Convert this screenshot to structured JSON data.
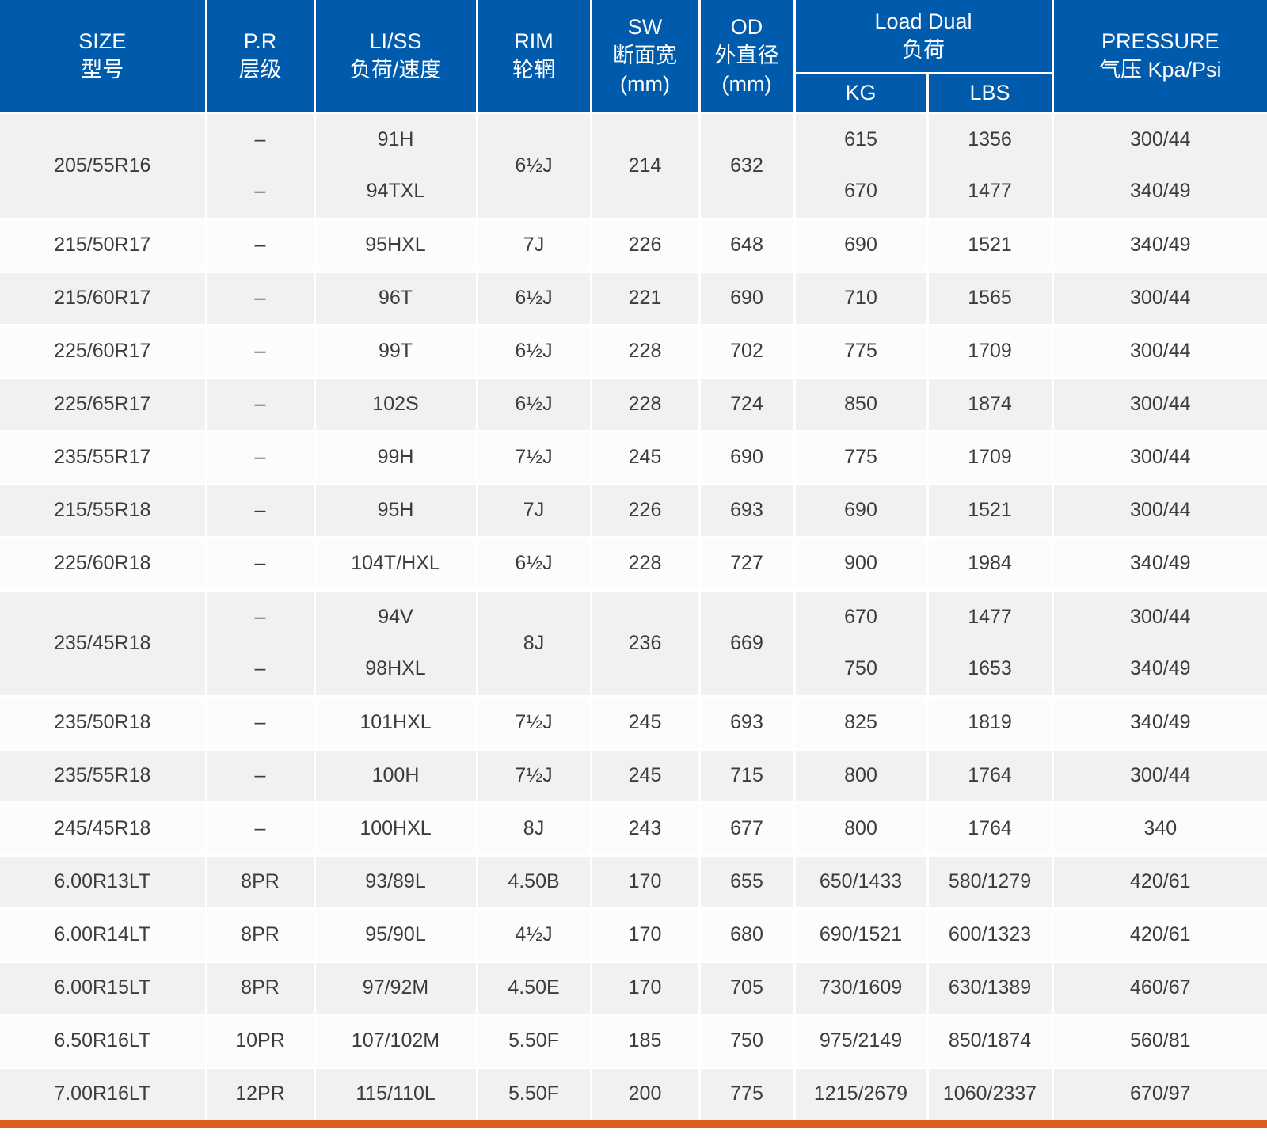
{
  "colors": {
    "header_blue": "#005BAC",
    "accent_orange": "#DD5E1E",
    "row_gray": "#F1F1F0",
    "row_white": "#FCFCFB",
    "body_text": "#3C3C3C",
    "header_text": "#FFFFFF"
  },
  "table": {
    "header": {
      "size": {
        "en": "SIZE",
        "zh": "型号"
      },
      "pr": {
        "en": "P.R",
        "zh": "层级"
      },
      "liss": {
        "en": "LI/SS",
        "zh": "负荷/速度"
      },
      "rim": {
        "en": "RIM",
        "zh": "轮辋"
      },
      "sw": {
        "en": "SW",
        "zh": "断面宽",
        "unit": "(mm)"
      },
      "od": {
        "en": "OD",
        "zh": "外直径",
        "unit": "(mm)"
      },
      "load_dual": {
        "en": "Load Dual",
        "zh": "负荷"
      },
      "kg": "KG",
      "lbs": "LBS",
      "pressure": {
        "en": "PRESSURE",
        "zh": "气压 Kpa/Psi"
      }
    },
    "rows": [
      {
        "double": true,
        "size": "205/55R16",
        "pr": [
          "–",
          "–"
        ],
        "liss": [
          "91H",
          "94TXL"
        ],
        "rim": "6½J",
        "sw": "214",
        "od": "632",
        "kg": [
          "615",
          "670"
        ],
        "lbs": [
          "1356",
          "1477"
        ],
        "pressure": [
          "300/44",
          "340/49"
        ]
      },
      {
        "double": false,
        "size": "215/50R17",
        "pr": "–",
        "liss": "95HXL",
        "rim": "7J",
        "sw": "226",
        "od": "648",
        "kg": "690",
        "lbs": "1521",
        "pressure": "340/49"
      },
      {
        "double": false,
        "size": "215/60R17",
        "pr": "–",
        "liss": "96T",
        "rim": "6½J",
        "sw": "221",
        "od": "690",
        "kg": "710",
        "lbs": "1565",
        "pressure": "300/44"
      },
      {
        "double": false,
        "size": "225/60R17",
        "pr": "–",
        "liss": "99T",
        "rim": "6½J",
        "sw": "228",
        "od": "702",
        "kg": "775",
        "lbs": "1709",
        "pressure": "300/44"
      },
      {
        "double": false,
        "size": "225/65R17",
        "pr": "–",
        "liss": "102S",
        "rim": "6½J",
        "sw": "228",
        "od": "724",
        "kg": "850",
        "lbs": "1874",
        "pressure": "300/44"
      },
      {
        "double": false,
        "size": "235/55R17",
        "pr": "–",
        "liss": "99H",
        "rim": "7½J",
        "sw": "245",
        "od": "690",
        "kg": "775",
        "lbs": "1709",
        "pressure": "300/44"
      },
      {
        "double": false,
        "size": "215/55R18",
        "pr": "–",
        "liss": "95H",
        "rim": "7J",
        "sw": "226",
        "od": "693",
        "kg": "690",
        "lbs": "1521",
        "pressure": "300/44"
      },
      {
        "double": false,
        "size": "225/60R18",
        "pr": "–",
        "liss": "104T/HXL",
        "rim": "6½J",
        "sw": "228",
        "od": "727",
        "kg": "900",
        "lbs": "1984",
        "pressure": "340/49"
      },
      {
        "double": true,
        "size": "235/45R18",
        "pr": [
          "–",
          "–"
        ],
        "liss": [
          "94V",
          "98HXL"
        ],
        "rim": "8J",
        "sw": "236",
        "od": "669",
        "kg": [
          "670",
          "750"
        ],
        "lbs": [
          "1477",
          "1653"
        ],
        "pressure": [
          "300/44",
          "340/49"
        ]
      },
      {
        "double": false,
        "size": "235/50R18",
        "pr": "–",
        "liss": "101HXL",
        "rim": "7½J",
        "sw": "245",
        "od": "693",
        "kg": "825",
        "lbs": "1819",
        "pressure": "340/49"
      },
      {
        "double": false,
        "size": "235/55R18",
        "pr": "–",
        "liss": "100H",
        "rim": "7½J",
        "sw": "245",
        "od": "715",
        "kg": "800",
        "lbs": "1764",
        "pressure": "300/44"
      },
      {
        "double": false,
        "size": "245/45R18",
        "pr": "–",
        "liss": "100HXL",
        "rim": "8J",
        "sw": "243",
        "od": "677",
        "kg": "800",
        "lbs": "1764",
        "pressure": "340"
      },
      {
        "double": false,
        "size": "6.00R13LT",
        "pr": "8PR",
        "liss": "93/89L",
        "rim": "4.50B",
        "sw": "170",
        "od": "655",
        "kg": "650/1433",
        "lbs": "580/1279",
        "pressure": "420/61"
      },
      {
        "double": false,
        "size": "6.00R14LT",
        "pr": "8PR",
        "liss": "95/90L",
        "rim": "4½J",
        "sw": "170",
        "od": "680",
        "kg": "690/1521",
        "lbs": "600/1323",
        "pressure": "420/61"
      },
      {
        "double": false,
        "size": "6.00R15LT",
        "pr": "8PR",
        "liss": "97/92M",
        "rim": "4.50E",
        "sw": "170",
        "od": "705",
        "kg": "730/1609",
        "lbs": "630/1389",
        "pressure": "460/67"
      },
      {
        "double": false,
        "size": "6.50R16LT",
        "pr": "10PR",
        "liss": "107/102M",
        "rim": "5.50F",
        "sw": "185",
        "od": "750",
        "kg": "975/2149",
        "lbs": "850/1874",
        "pressure": "560/81"
      },
      {
        "double": false,
        "size": "7.00R16LT",
        "pr": "12PR",
        "liss": "115/110L",
        "rim": "5.50F",
        "sw": "200",
        "od": "775",
        "kg": "1215/2679",
        "lbs": "1060/2337",
        "pressure": "670/97"
      }
    ]
  }
}
